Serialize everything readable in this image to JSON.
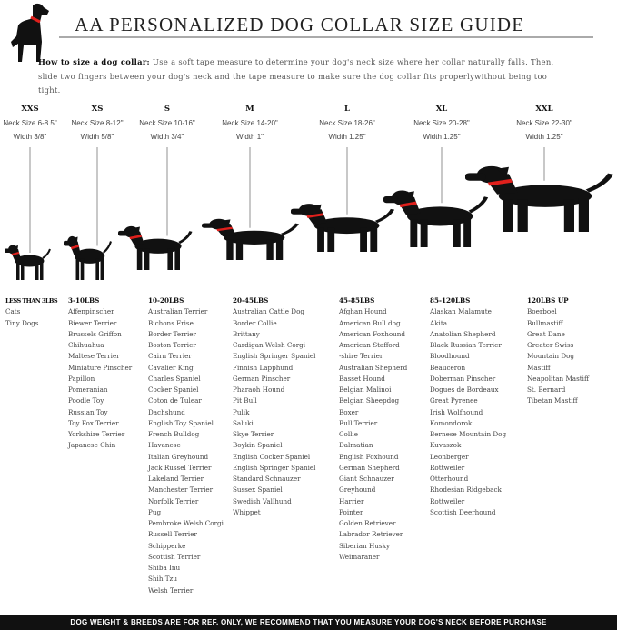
{
  "header": {
    "title": "AA PERSONALIZED DOG COLLAR SIZE GUIDE",
    "logo_icon": "dog-with-red-collar-icon"
  },
  "intro": {
    "lead": "How to size a dog collar:",
    "text": " Use a soft tape measure to determine your dog's neck size where her collar naturally falls. Then, slide two fingers between your dog's neck and the tape measure to make sure the dog collar fits properlywithout being too tight."
  },
  "colors": {
    "collar": "#e0201c",
    "silhouette": "#111111",
    "footer_bg": "#111111"
  },
  "sizes": [
    {
      "label": "XXS",
      "neck": "Neck Size 6-8.5\"",
      "width": "Width 3/8\""
    },
    {
      "label": "XS",
      "neck": "Neck Size 8-12\"",
      "width": "Width 5/8\""
    },
    {
      "label": "S",
      "neck": "Neck Size 10-16\"",
      "width": "Width 3/4\""
    },
    {
      "label": "M",
      "neck": "Neck Size 14-20\"",
      "width": "Width 1\""
    },
    {
      "label": "L",
      "neck": "Neck Size 18-26\"",
      "width": "Width 1.25\""
    },
    {
      "label": "XL",
      "neck": "Neck Size 20-28\"",
      "width": "Width 1.25\""
    },
    {
      "label": "XXL",
      "neck": "Neck Size 22-30\"",
      "width": "Width 1.25\""
    }
  ],
  "columns": [
    {
      "heading": "LESS THAN 3LBS",
      "breeds": [
        "Cats",
        "Tiny Dogs"
      ]
    },
    {
      "heading": "3-10LBS",
      "breeds": [
        "Affenpinscher",
        "Biewer Terrier",
        "Brussels Griffon",
        "Chihuahua",
        "Maltese Terrier",
        "Miniature Pinscher",
        "Papillon",
        "Pomeranian",
        "Poodle Toy",
        "Russian Toy",
        "Toy Fox Terrier",
        "Yorkshire Terrier",
        "Japanese Chin"
      ]
    },
    {
      "heading": "10-20LBS",
      "breeds": [
        "Australian Terrier",
        "Bichons Frise",
        "Border Terrier",
        "Boston Terrier",
        "Cairn Terrier",
        "Cavalier King",
        "Charles Spaniel",
        "Cocker Spaniel",
        "Coton de Tulear",
        "Dachshund",
        "English Toy Spaniel",
        "French Bulldog",
        "Havanese",
        "Italian Greyhound",
        "Jack Russel Terrier",
        "Lakeland Terrier",
        "Manchester Terrier",
        "Norfolk Terrier",
        "Pug",
        "Pembroke Welsh Corgi",
        "Russell Terrier",
        "Schipperke",
        "Scottish Terrier",
        "Shiba Inu",
        "Shih Tzu",
        "Welsh Terrier"
      ]
    },
    {
      "heading": "20-45LBS",
      "breeds": [
        "Australian Cattle Dog",
        "Border Collie",
        "Brittany",
        "Cardigan Welsh Corgi",
        "English Springer Spaniel",
        "Finnish Lapphund",
        "German Pinscher",
        "Pharaoh Hound",
        "Pit Bull",
        "Pulik",
        "Saluki",
        "Skye Terrier",
        "Boykin Spaniel",
        "English Cocker Spaniel",
        "English Springer Spaniel",
        "Standard Schnauzer",
        "Sussex Spaniel",
        "Swedish Vallhund",
        "Whippet"
      ]
    },
    {
      "heading": "45-85LBS",
      "breeds": [
        "Afghan Hound",
        "American Bull dog",
        "American Foxhound",
        "American Stafford",
        "-shire Terrier",
        "Australian Shepherd",
        "Basset Hound",
        "Belgian Malinoi",
        "Belgian Sheepdog",
        "Boxer",
        "Bull Terrier",
        "Collie",
        "Dalmatian",
        "English Foxhound",
        "German Shepherd",
        "Giant Schnauzer",
        "Greyhound",
        "Harrier",
        "Pointer",
        "Golden Retriever",
        "Labrador Retriever",
        "Siberian Husky",
        "Weimaraner"
      ]
    },
    {
      "heading": "85-120LBS",
      "breeds": [
        "Alaskan Malamute",
        "Akita",
        "Anatolian Shepherd",
        "Black Russian Terrier",
        "Bloodhound",
        "Beauceron",
        "Doberman Pinscher",
        "Dogues de Bordeaux",
        "Great Pyrenee",
        "Irish Wolfhound",
        "Komondorok",
        "Bernese Mountain Dog",
        "Kuvaszok",
        "Leonberger",
        "Rottweiler",
        "Otterhound",
        "Rhodesian Ridgeback",
        "Rottweiler",
        "Scottish Deerhound"
      ]
    },
    {
      "heading": "120LBS UP",
      "breeds": [
        "Boerboel",
        "Bullmastiff",
        "Great Dane",
        "Greater Swiss",
        "Mountain Dog",
        "Mastiff",
        "Neapolitan Mastiff",
        "St. Bernard",
        "Tibetan Mastiff"
      ]
    }
  ],
  "footer": {
    "text": "DOG WEIGHT & BREEDS ARE FOR REF. ONLY, WE RECOMMEND THAT YOU MEASURE YOUR DOG'S NECK BEFORE PURCHASE"
  }
}
